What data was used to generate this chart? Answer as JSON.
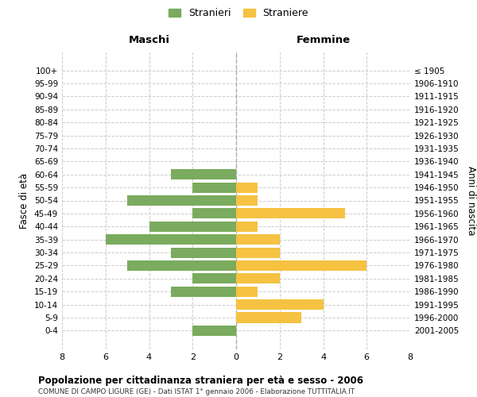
{
  "age_groups": [
    "100+",
    "95-99",
    "90-94",
    "85-89",
    "80-84",
    "75-79",
    "70-74",
    "65-69",
    "60-64",
    "55-59",
    "50-54",
    "45-49",
    "40-44",
    "35-39",
    "30-34",
    "25-29",
    "20-24",
    "15-19",
    "10-14",
    "5-9",
    "0-4"
  ],
  "birth_years": [
    "≤ 1905",
    "1906-1910",
    "1911-1915",
    "1916-1920",
    "1921-1925",
    "1926-1930",
    "1931-1935",
    "1936-1940",
    "1941-1945",
    "1946-1950",
    "1951-1955",
    "1956-1960",
    "1961-1965",
    "1966-1970",
    "1971-1975",
    "1976-1980",
    "1981-1985",
    "1986-1990",
    "1991-1995",
    "1996-2000",
    "2001-2005"
  ],
  "maschi": [
    0,
    0,
    0,
    0,
    0,
    0,
    0,
    0,
    3,
    2,
    5,
    2,
    4,
    6,
    3,
    5,
    2,
    3,
    0,
    0,
    2
  ],
  "femmine": [
    0,
    0,
    0,
    0,
    0,
    0,
    0,
    0,
    0,
    1,
    1,
    5,
    1,
    2,
    2,
    6,
    2,
    1,
    4,
    3,
    0
  ],
  "maschi_color": "#7aab5e",
  "femmine_color": "#f5c242",
  "title": "Popolazione per cittadinanza straniera per età e sesso - 2006",
  "subtitle": "COMUNE DI CAMPO LIGURE (GE) - Dati ISTAT 1° gennaio 2006 - Elaborazione TUTTITALIA.IT",
  "ylabel_left": "Fasce di età",
  "ylabel_right": "Anni di nascita",
  "label_maschi": "Maschi",
  "label_femmine": "Femmine",
  "legend_maschi": "Stranieri",
  "legend_femmine": "Straniere",
  "xlim": 8,
  "background_color": "#ffffff",
  "grid_color": "#cccccc"
}
